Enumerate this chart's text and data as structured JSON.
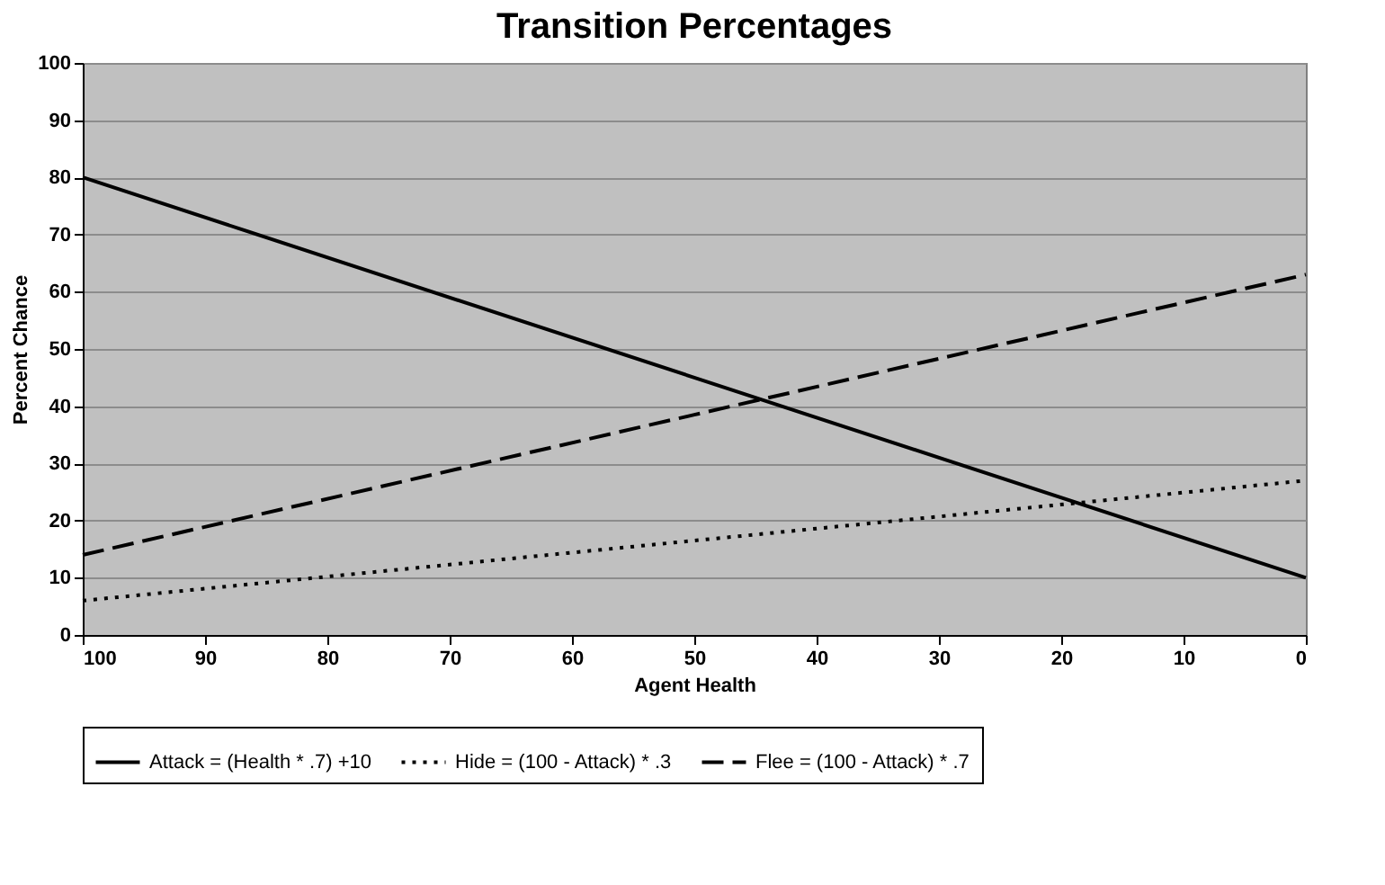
{
  "chart_data": {
    "type": "line",
    "title": "Transition Percentages",
    "xlabel": "Agent Health",
    "ylabel": "Percent Chance",
    "x": [
      100,
      50,
      0
    ],
    "series": [
      {
        "name": "Attack = (Health * .7) +10",
        "color": "#000000",
        "line_style": "solid",
        "values": [
          80,
          45,
          10
        ]
      },
      {
        "name": "Hide = (100 - Attack) * .3",
        "color": "#000000",
        "line_style": "dotted",
        "values": [
          6,
          16.5,
          27
        ]
      },
      {
        "name": "Flee = (100 - Attack) * .7",
        "color": "#000000",
        "line_style": "dashed",
        "values": [
          14,
          38.5,
          63
        ]
      }
    ],
    "xlim": [
      100,
      0
    ],
    "xticks": [
      100,
      90,
      80,
      70,
      60,
      50,
      40,
      30,
      20,
      10,
      0
    ],
    "ylim": [
      0,
      100
    ],
    "yticks": [
      0,
      10,
      20,
      30,
      40,
      50,
      60,
      70,
      80,
      90,
      100
    ],
    "grid": "y",
    "legend": "bottom",
    "marker": "none"
  }
}
